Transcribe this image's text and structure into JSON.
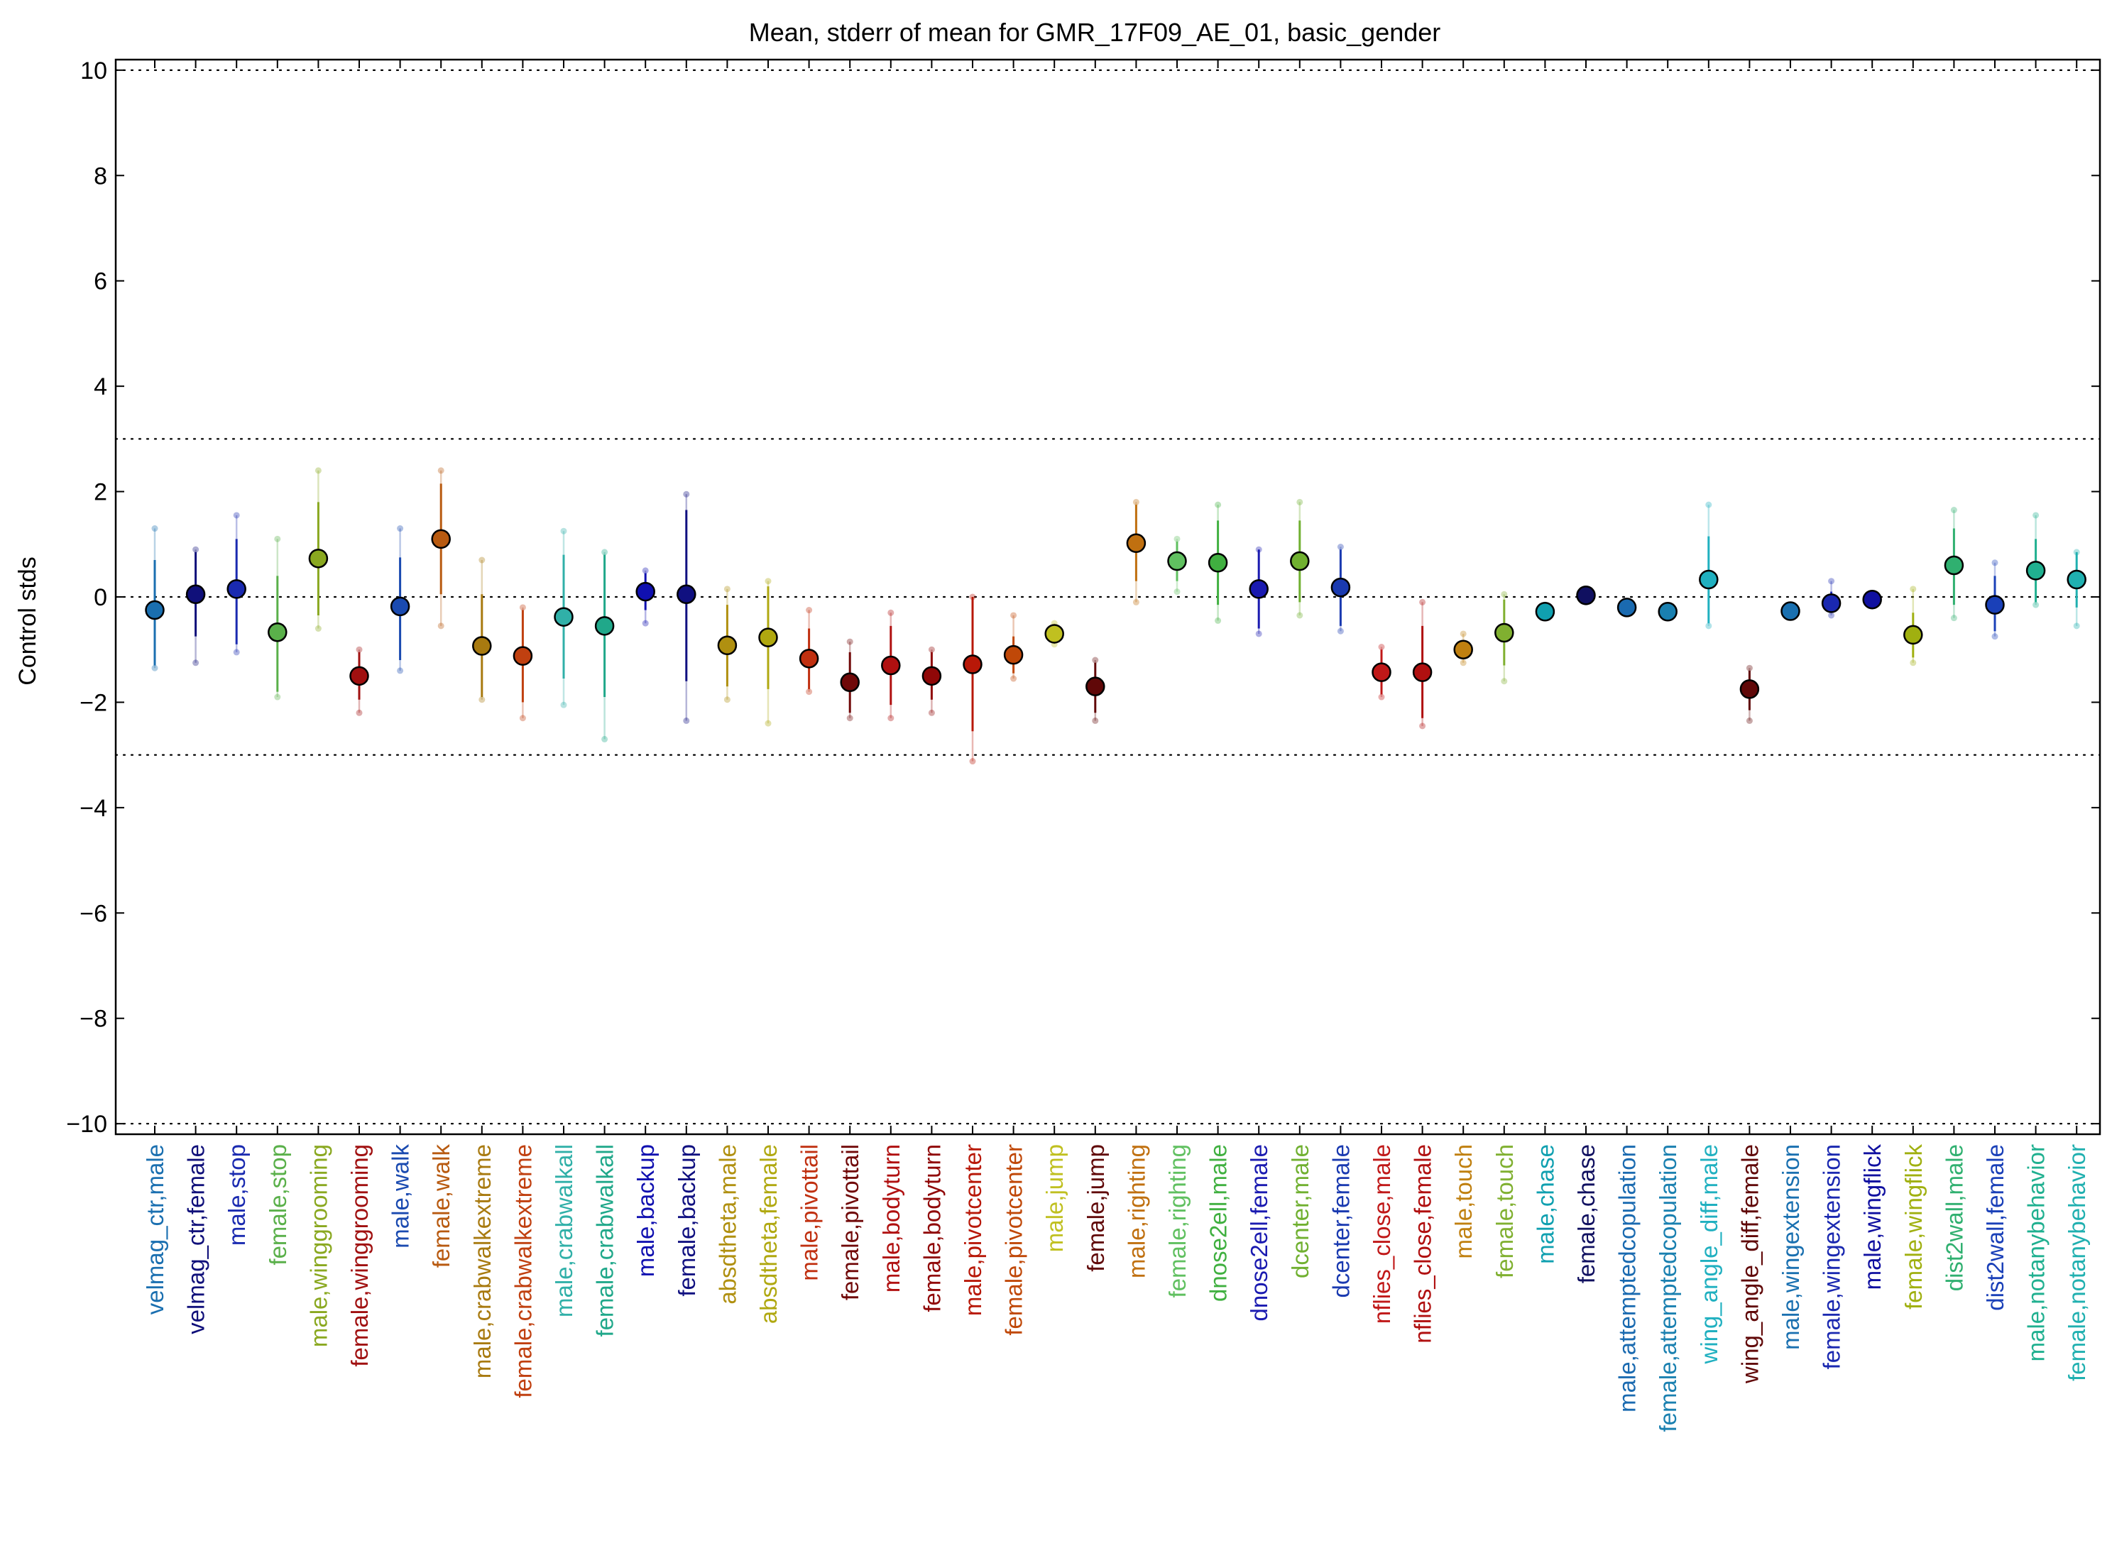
{
  "chart_data": {
    "type": "scatter",
    "title": "Mean, stderr of mean for GMR_17F09_AE_01, basic_gender",
    "xlabel": "",
    "ylabel": "Control stds",
    "ylim": [
      -10.2,
      10.2
    ],
    "yticks": [
      10,
      8,
      6,
      4,
      2,
      0,
      -2,
      -4,
      -6,
      -8,
      -10
    ],
    "ytick_labels": [
      "10",
      "8",
      "6",
      "4",
      "2",
      "0",
      "−2",
      "−4",
      "−6",
      "−8",
      "−10"
    ],
    "reference_lines": [
      10,
      3,
      0,
      -3,
      -10
    ],
    "grid": false,
    "points": [
      {
        "label": "velmag_ctr,male",
        "color": "#1a6fb0",
        "mean": -0.25,
        "err_lo": -1.3,
        "err_hi": 0.7,
        "ext_lo": -1.35,
        "ext_hi": 1.3
      },
      {
        "label": "velmag_ctr,female",
        "color": "#10107a",
        "mean": 0.05,
        "err_lo": -0.75,
        "err_hi": 0.85,
        "ext_lo": -1.25,
        "ext_hi": 0.9
      },
      {
        "label": "male,stop",
        "color": "#1a2ab0",
        "mean": 0.15,
        "err_lo": -0.9,
        "err_hi": 1.1,
        "ext_lo": -1.05,
        "ext_hi": 1.55
      },
      {
        "label": "female,stop",
        "color": "#5ab04a",
        "mean": -0.67,
        "err_lo": -1.8,
        "err_hi": 0.4,
        "ext_lo": -1.9,
        "ext_hi": 1.1
      },
      {
        "label": "male,winggrooming",
        "color": "#8aa820",
        "mean": 0.73,
        "err_lo": -0.35,
        "err_hi": 1.8,
        "ext_lo": -0.6,
        "ext_hi": 2.4
      },
      {
        "label": "female,winggrooming",
        "color": "#a01010",
        "mean": -1.5,
        "err_lo": -1.95,
        "err_hi": -1.05,
        "ext_lo": -2.2,
        "ext_hi": -1.0
      },
      {
        "label": "male,walk",
        "color": "#1a4ab0",
        "mean": -0.18,
        "err_lo": -1.2,
        "err_hi": 0.75,
        "ext_lo": -1.4,
        "ext_hi": 1.3
      },
      {
        "label": "female,walk",
        "color": "#b85a10",
        "mean": 1.1,
        "err_lo": 0.05,
        "err_hi": 2.15,
        "ext_lo": -0.55,
        "ext_hi": 2.4
      },
      {
        "label": "male,crabwalkextreme",
        "color": "#a87a10",
        "mean": -0.93,
        "err_lo": -1.9,
        "err_hi": 0.05,
        "ext_lo": -1.95,
        "ext_hi": 0.7
      },
      {
        "label": "female,crabwalkextreme",
        "color": "#c04010",
        "mean": -1.12,
        "err_lo": -2.0,
        "err_hi": -0.25,
        "ext_lo": -2.3,
        "ext_hi": -0.2
      },
      {
        "label": "male,crabwalkall",
        "color": "#30b0a8",
        "mean": -0.38,
        "err_lo": -1.55,
        "err_hi": 0.8,
        "ext_lo": -2.05,
        "ext_hi": 1.25
      },
      {
        "label": "female,crabwalkall",
        "color": "#20a88a",
        "mean": -0.55,
        "err_lo": -1.9,
        "err_hi": 0.8,
        "ext_lo": -2.7,
        "ext_hi": 0.85
      },
      {
        "label": "male,backup",
        "color": "#1010b0",
        "mean": 0.1,
        "err_lo": -0.25,
        "err_hi": 0.45,
        "ext_lo": -0.5,
        "ext_hi": 0.5
      },
      {
        "label": "female,backup",
        "color": "#101080",
        "mean": 0.05,
        "err_lo": -1.6,
        "err_hi": 1.65,
        "ext_lo": -2.35,
        "ext_hi": 1.95
      },
      {
        "label": "absdtheta,male",
        "color": "#b09010",
        "mean": -0.92,
        "err_lo": -1.7,
        "err_hi": -0.15,
        "ext_lo": -1.95,
        "ext_hi": 0.15
      },
      {
        "label": "absdtheta,female",
        "color": "#b0a810",
        "mean": -0.77,
        "err_lo": -1.75,
        "err_hi": 0.2,
        "ext_lo": -2.4,
        "ext_hi": 0.3
      },
      {
        "label": "male,pivottail",
        "color": "#c03010",
        "mean": -1.17,
        "err_lo": -1.75,
        "err_hi": -0.6,
        "ext_lo": -1.8,
        "ext_hi": -0.25
      },
      {
        "label": "female,pivottail",
        "color": "#700808",
        "mean": -1.62,
        "err_lo": -2.2,
        "err_hi": -1.05,
        "ext_lo": -2.3,
        "ext_hi": -0.85
      },
      {
        "label": "male,bodyturn",
        "color": "#b01010",
        "mean": -1.3,
        "err_lo": -2.05,
        "err_hi": -0.55,
        "ext_lo": -2.3,
        "ext_hi": -0.3
      },
      {
        "label": "female,bodyturn",
        "color": "#900808",
        "mean": -1.5,
        "err_lo": -1.95,
        "err_hi": -1.05,
        "ext_lo": -2.2,
        "ext_hi": -1.0
      },
      {
        "label": "male,pivotcenter",
        "color": "#b81808",
        "mean": -1.28,
        "err_lo": -2.55,
        "err_hi": 0.0,
        "ext_lo": -3.12,
        "ext_hi": 0.0
      },
      {
        "label": "female,pivotcenter",
        "color": "#c04808",
        "mean": -1.1,
        "err_lo": -1.45,
        "err_hi": -0.75,
        "ext_lo": -1.55,
        "ext_hi": -0.35
      },
      {
        "label": "male,jump",
        "color": "#c0c020",
        "mean": -0.7,
        "err_lo": -0.85,
        "err_hi": -0.55,
        "ext_lo": -0.9,
        "ext_hi": -0.5
      },
      {
        "label": "female,jump",
        "color": "#600808",
        "mean": -1.7,
        "err_lo": -2.2,
        "err_hi": -1.25,
        "ext_lo": -2.35,
        "ext_hi": -1.2
      },
      {
        "label": "male,righting",
        "color": "#c07010",
        "mean": 1.02,
        "err_lo": 0.3,
        "err_hi": 1.75,
        "ext_lo": -0.1,
        "ext_hi": 1.8
      },
      {
        "label": "female,righting",
        "color": "#60c060",
        "mean": 0.68,
        "err_lo": 0.3,
        "err_hi": 1.05,
        "ext_lo": 0.1,
        "ext_hi": 1.1
      },
      {
        "label": "dnose2ell,male",
        "color": "#40b040",
        "mean": 0.65,
        "err_lo": -0.15,
        "err_hi": 1.45,
        "ext_lo": -0.45,
        "ext_hi": 1.75
      },
      {
        "label": "dnose2ell,female",
        "color": "#1a1ab0",
        "mean": 0.15,
        "err_lo": -0.6,
        "err_hi": 0.9,
        "ext_lo": -0.7,
        "ext_hi": 0.9
      },
      {
        "label": "dcenter,male",
        "color": "#70b030",
        "mean": 0.68,
        "err_lo": -0.1,
        "err_hi": 1.45,
        "ext_lo": -0.35,
        "ext_hi": 1.8
      },
      {
        "label": "dcenter,female",
        "color": "#1a3ab0",
        "mean": 0.18,
        "err_lo": -0.55,
        "err_hi": 0.9,
        "ext_lo": -0.65,
        "ext_hi": 0.95
      },
      {
        "label": "nflies_close,male",
        "color": "#c01818",
        "mean": -1.43,
        "err_lo": -1.85,
        "err_hi": -1.0,
        "ext_lo": -1.9,
        "ext_hi": -0.95
      },
      {
        "label": "nflies_close,female",
        "color": "#b01010",
        "mean": -1.43,
        "err_lo": -2.3,
        "err_hi": -0.55,
        "ext_lo": -2.45,
        "ext_hi": -0.1
      },
      {
        "label": "male,touch",
        "color": "#c08010",
        "mean": -1.0,
        "err_lo": -1.15,
        "err_hi": -0.85,
        "ext_lo": -1.25,
        "ext_hi": -0.7
      },
      {
        "label": "female,touch",
        "color": "#80b030",
        "mean": -0.68,
        "err_lo": -1.3,
        "err_hi": -0.05,
        "ext_lo": -1.6,
        "ext_hi": 0.05
      },
      {
        "label": "male,chase",
        "color": "#10a0b0",
        "mean": -0.28,
        "err_lo": -0.35,
        "err_hi": -0.2,
        "ext_lo": -0.4,
        "ext_hi": -0.15
      },
      {
        "label": "female,chase",
        "color": "#101060",
        "mean": 0.03,
        "err_lo": -0.05,
        "err_hi": 0.1,
        "ext_lo": -0.1,
        "ext_hi": 0.15
      },
      {
        "label": "male,attemptedcopulation",
        "color": "#1a6ab0",
        "mean": -0.2,
        "err_lo": -0.25,
        "err_hi": -0.15,
        "ext_lo": -0.28,
        "ext_hi": -0.12
      },
      {
        "label": "female,attemptedcopulation",
        "color": "#1a80b0",
        "mean": -0.28,
        "err_lo": -0.32,
        "err_hi": -0.22,
        "ext_lo": -0.35,
        "ext_hi": -0.2
      },
      {
        "label": "wing_angle_diff,male",
        "color": "#20b0c0",
        "mean": 0.33,
        "err_lo": -0.5,
        "err_hi": 1.15,
        "ext_lo": -0.55,
        "ext_hi": 1.75
      },
      {
        "label": "wing_angle_diff,female",
        "color": "#600808",
        "mean": -1.75,
        "err_lo": -2.15,
        "err_hi": -1.4,
        "ext_lo": -2.35,
        "ext_hi": -1.35
      },
      {
        "label": "male,wingextension",
        "color": "#1a70b0",
        "mean": -0.27,
        "err_lo": -0.32,
        "err_hi": -0.2,
        "ext_lo": -0.35,
        "ext_hi": -0.18
      },
      {
        "label": "female,wingextension",
        "color": "#1a28b0",
        "mean": -0.12,
        "err_lo": -0.3,
        "err_hi": 0.1,
        "ext_lo": -0.35,
        "ext_hi": 0.3
      },
      {
        "label": "male,wingflick",
        "color": "#1010a0",
        "mean": -0.05,
        "err_lo": -0.1,
        "err_hi": 0.0,
        "ext_lo": -0.12,
        "ext_hi": 0.02
      },
      {
        "label": "female,wingflick",
        "color": "#a0b010",
        "mean": -0.72,
        "err_lo": -1.15,
        "err_hi": -0.3,
        "ext_lo": -1.25,
        "ext_hi": 0.15
      },
      {
        "label": "dist2wall,male",
        "color": "#30b070",
        "mean": 0.6,
        "err_lo": -0.15,
        "err_hi": 1.3,
        "ext_lo": -0.4,
        "ext_hi": 1.65
      },
      {
        "label": "dist2wall,female",
        "color": "#1a40b8",
        "mean": -0.15,
        "err_lo": -0.65,
        "err_hi": 0.4,
        "ext_lo": -0.75,
        "ext_hi": 0.65
      },
      {
        "label": "male,notanybehavior",
        "color": "#20b090",
        "mean": 0.5,
        "err_lo": -0.1,
        "err_hi": 1.1,
        "ext_lo": -0.15,
        "ext_hi": 1.55
      },
      {
        "label": "female,notanybehavior",
        "color": "#20b0b0",
        "mean": 0.33,
        "err_lo": -0.2,
        "err_hi": 0.85,
        "ext_lo": -0.55,
        "ext_hi": 0.85
      }
    ]
  }
}
